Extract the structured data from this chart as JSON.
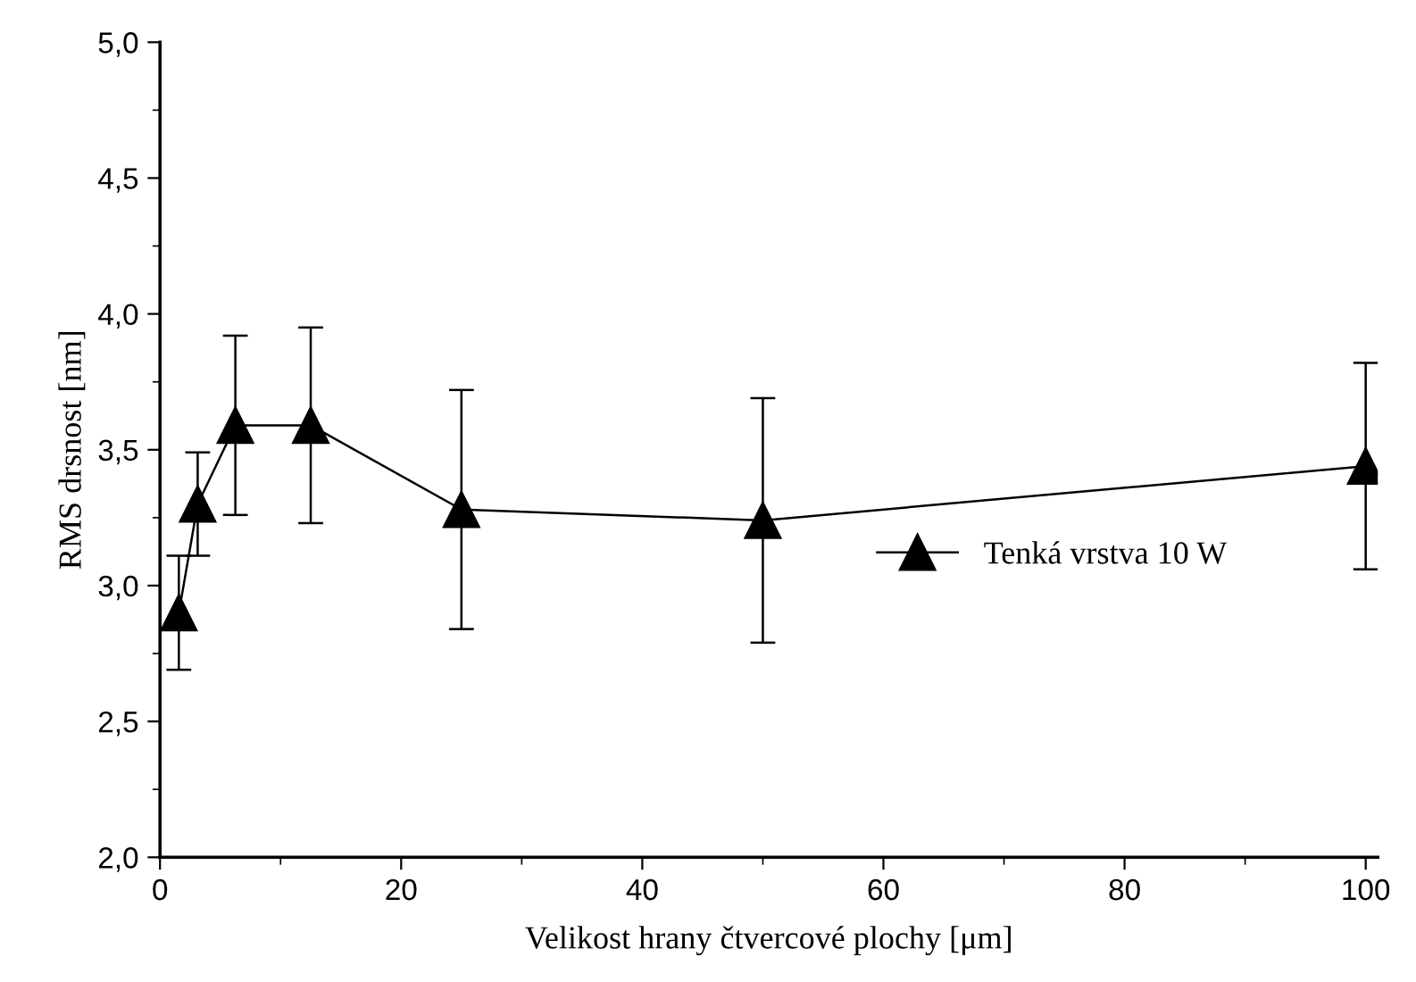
{
  "chart_data": {
    "type": "line",
    "xlabel": "Velikost hrany čtvercové plochy [μm]",
    "ylabel": "RMS drsnost [nm]",
    "x": [
      1.5625,
      3.125,
      6.25,
      12.5,
      25,
      50,
      100
    ],
    "series": [
      {
        "name": "Tenká vrstva 10 W",
        "color": "#000000",
        "values": [
          2.9,
          3.3,
          3.59,
          3.59,
          3.28,
          3.24,
          3.44
        ],
        "errors": [
          0.21,
          0.19,
          0.33,
          0.36,
          0.44,
          0.45,
          0.38
        ]
      }
    ],
    "xlim": [
      0,
      101
    ],
    "ylim": [
      2.0,
      5.0
    ],
    "xticks": [
      0,
      20,
      40,
      60,
      80,
      100
    ],
    "yticks": [
      {
        "value": 2.0,
        "label": "2,0"
      },
      {
        "value": 2.5,
        "label": "2,5"
      },
      {
        "value": 3.0,
        "label": "3,0"
      },
      {
        "value": 3.5,
        "label": "3,5"
      },
      {
        "value": 4.0,
        "label": "4,0"
      },
      {
        "value": 4.5,
        "label": "4,5"
      },
      {
        "value": 5.0,
        "label": "5,0"
      }
    ],
    "marker": "triangle",
    "line_style": "solid",
    "grid": false,
    "legend": "right"
  }
}
